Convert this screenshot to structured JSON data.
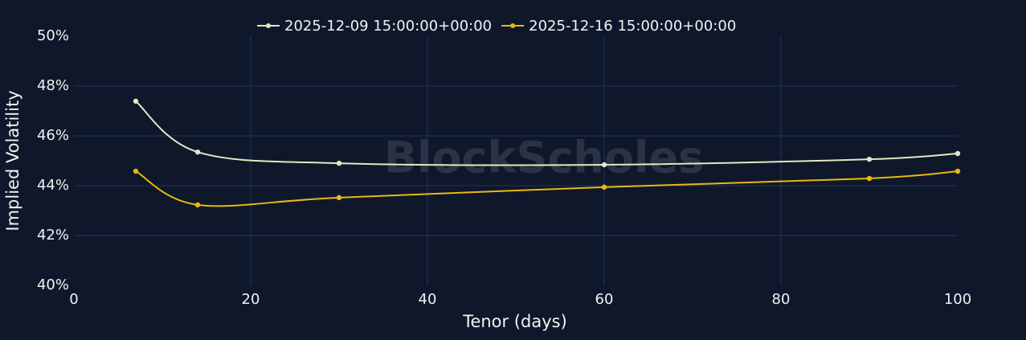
{
  "chart_data": {
    "type": "line",
    "xlabel": "Tenor (days)",
    "ylabel": "Implied Volatility",
    "watermark": "BlockScholes",
    "x": [
      7,
      14,
      30,
      60,
      90,
      100
    ],
    "series": [
      {
        "name": "2025-12-09 15:00:00+00:00",
        "color": "#e4e7c2",
        "values": [
          47.39,
          45.35,
          44.9,
          44.84,
          45.06,
          45.29
        ]
      },
      {
        "name": "2025-12-16 15:00:00+00:00",
        "color": "#e8b90f",
        "values": [
          44.58,
          43.23,
          43.52,
          43.94,
          44.29,
          44.58
        ]
      }
    ],
    "xlim": [
      0,
      100
    ],
    "xticks": [
      0,
      20,
      40,
      60,
      80,
      100
    ],
    "ylim": [
      40,
      50
    ],
    "yticks": [
      {
        "value": 40,
        "label": "40%"
      },
      {
        "value": 42,
        "label": "42%"
      },
      {
        "value": 44,
        "label": "44%"
      },
      {
        "value": 46,
        "label": "46%"
      },
      {
        "value": 48,
        "label": "48%"
      },
      {
        "value": 50,
        "label": "50%"
      }
    ],
    "grid": true,
    "legend": "top"
  }
}
